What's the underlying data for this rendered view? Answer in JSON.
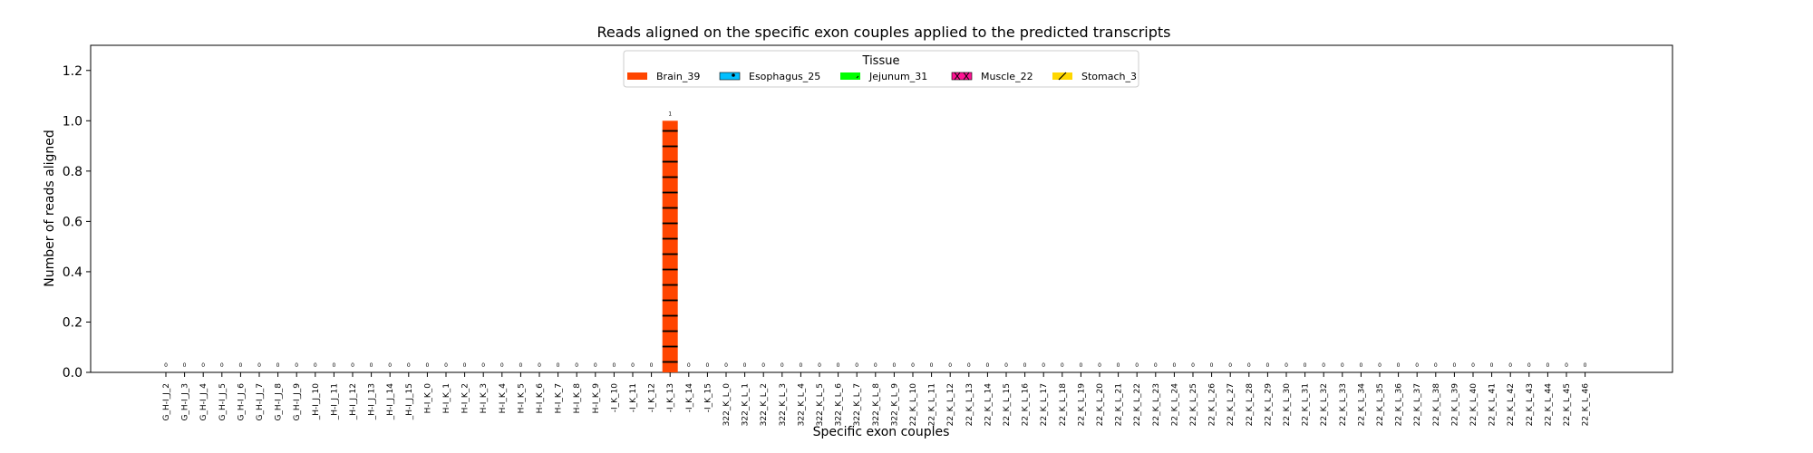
{
  "chart_data": {
    "type": "bar",
    "title": "Reads aligned on the specific exon couples applied to the predicted transcripts",
    "xlabel": "Specific exon couples",
    "ylabel": "Number of reads aligned",
    "ylim": [
      0,
      1.3
    ],
    "yticks": [
      "0.0",
      "0.2",
      "0.4",
      "0.6",
      "0.8",
      "1.0",
      "1.2"
    ],
    "ytick_values": [
      0,
      0.2,
      0.4,
      0.6,
      0.8,
      1.0,
      1.2
    ],
    "grid": false,
    "legend": {
      "title": "Tissue",
      "placement": "upper-center",
      "entries": [
        {
          "label": "Brain_39",
          "color": "#ff4500",
          "hatch": "horizontal-lines"
        },
        {
          "label": "Esophagus_25",
          "color": "#00bfff",
          "hatch": "dots"
        },
        {
          "label": "Jejunum_31",
          "color": "#00ff00",
          "hatch": "none"
        },
        {
          "label": "Muscle_22",
          "color": "#ff1493",
          "hatch": "crosshatch"
        },
        {
          "label": "Stomach_3",
          "color": "#ffd700",
          "hatch": "diagonal"
        }
      ]
    },
    "categories": [
      "G_H-I_J_2",
      "G_H-I_J_3",
      "G_H-I_J_4",
      "G_H-I_J_5",
      "G_H-I_J_6",
      "G_H-I_J_7",
      "G_H-I_J_8",
      "G_H-I_J_9",
      "_H-I_J_10",
      "_H-I_J_11",
      "_H-I_J_12",
      "_H-I_J_13",
      "_H-I_J_14",
      "_H-I_J_15",
      "H-I_K_0",
      "H-I_K_1",
      "H-I_K_2",
      "H-I_K_3",
      "H-I_K_4",
      "H-I_K_5",
      "H-I_K_6",
      "H-I_K_7",
      "H-I_K_8",
      "H-I_K_9",
      "-I_K_10",
      "-I_K_11",
      "-I_K_12",
      "-I_K_13",
      "-I_K_14",
      "-I_K_15",
      "322_K_L_0",
      "322_K_L_1",
      "322_K_L_2",
      "322_K_L_3",
      "322_K_L_4",
      "322_K_L_5",
      "322_K_L_6",
      "322_K_L_7",
      "322_K_L_8",
      "322_K_L_9",
      "22_K_L_10",
      "22_K_L_11",
      "22_K_L_12",
      "22_K_L_13",
      "22_K_L_14",
      "22_K_L_15",
      "22_K_L_16",
      "22_K_L_17",
      "22_K_L_18",
      "22_K_L_19",
      "22_K_L_20",
      "22_K_L_21",
      "22_K_L_22",
      "22_K_L_23",
      "22_K_L_24",
      "22_K_L_25",
      "22_K_L_26",
      "22_K_L_27",
      "22_K_L_28",
      "22_K_L_29",
      "22_K_L_30",
      "22_K_L_31",
      "22_K_L_32",
      "22_K_L_33",
      "22_K_L_34",
      "22_K_L_35",
      "22_K_L_36",
      "22_K_L_37",
      "22_K_L_38",
      "22_K_L_39",
      "22_K_L_40",
      "22_K_L_41",
      "22_K_L_42",
      "22_K_L_43",
      "22_K_L_44",
      "22_K_L_45",
      "22_K_L_46"
    ],
    "series": [
      {
        "name": "Brain_39",
        "color": "#ff4500",
        "values": [
          0,
          0,
          0,
          0,
          0,
          0,
          0,
          0,
          0,
          0,
          0,
          0,
          0,
          0,
          0,
          0,
          0,
          0,
          0,
          0,
          0,
          0,
          0,
          0,
          0,
          0,
          0,
          1,
          0,
          0,
          0,
          0,
          0,
          0,
          0,
          0,
          0,
          0,
          0,
          0,
          0,
          0,
          0,
          0,
          0,
          0,
          0,
          0,
          0,
          0,
          0,
          0,
          0,
          0,
          0,
          0,
          0,
          0,
          0,
          0,
          0,
          0,
          0,
          0,
          0,
          0,
          0,
          0,
          0,
          0,
          0,
          0,
          0,
          0,
          0,
          0,
          0
        ]
      }
    ]
  }
}
